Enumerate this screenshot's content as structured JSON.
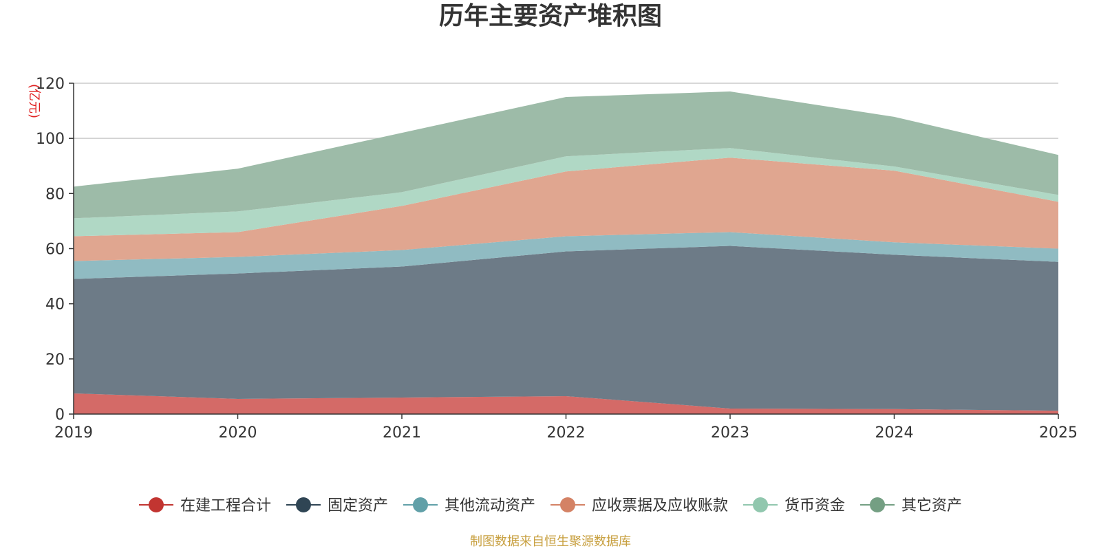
{
  "chart_data": {
    "type": "area",
    "stacked": true,
    "title": "历年主要资产堆积图",
    "ylabel": "(亿元)",
    "xlabel": "",
    "categories": [
      "2019",
      "2020",
      "2021",
      "2022",
      "2023",
      "2024",
      "2025"
    ],
    "ylim": [
      0,
      120
    ],
    "yticks": [
      0,
      20,
      40,
      60,
      80,
      100,
      120
    ],
    "grid": true,
    "legend_position": "bottom",
    "series": [
      {
        "name": "在建工程合计",
        "color": "#c23531",
        "fill": "#d46a67",
        "values": [
          7.5,
          5.5,
          6.0,
          6.5,
          2.0,
          1.8,
          1.2
        ]
      },
      {
        "name": "固定资产",
        "color": "#2f4554",
        "fill": "#6d7b87",
        "values": [
          41.5,
          45.5,
          47.5,
          52.5,
          59.0,
          56.0,
          54.0
        ]
      },
      {
        "name": "其他流动资产",
        "color": "#61a0a8",
        "fill": "#90bbc2",
        "values": [
          6.5,
          6.0,
          6.0,
          5.5,
          5.0,
          4.5,
          4.8
        ]
      },
      {
        "name": "应收票据及应收账款",
        "color": "#d48265",
        "fill": "#e0a690",
        "values": [
          9.0,
          9.0,
          16.0,
          23.5,
          27.0,
          26.0,
          17.0
        ]
      },
      {
        "name": "货币资金",
        "color": "#91c7ae",
        "fill": "#b0d8c5",
        "values": [
          6.5,
          7.5,
          5.0,
          5.5,
          3.5,
          1.5,
          2.5
        ]
      },
      {
        "name": "其它资产",
        "color": "#749f83",
        "fill": "#9dbba8",
        "values": [
          11.5,
          15.5,
          21.5,
          21.5,
          20.5,
          18.0,
          14.5
        ]
      }
    ]
  },
  "footer": {
    "source_text": "制图数据来自恒生聚源数据库"
  }
}
